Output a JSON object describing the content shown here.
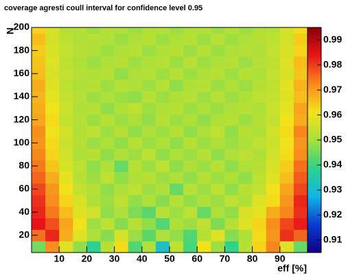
{
  "chart_data": {
    "type": "heatmap",
    "title": "coverage agresti coull interval for confidence level 0.95",
    "xlabel": "eff [%]",
    "ylabel": "N",
    "xlim": [
      0,
      100
    ],
    "xticks": [
      10,
      20,
      30,
      40,
      50,
      60,
      70,
      80,
      90
    ],
    "ylim": [
      5,
      200
    ],
    "yticks": [
      20,
      40,
      60,
      80,
      100,
      120,
      140,
      160,
      180,
      200
    ],
    "zlim": [
      0.905,
      0.995
    ],
    "zticks": [
      0.91,
      0.92,
      0.93,
      0.94,
      0.95,
      0.96,
      0.97,
      0.98,
      0.99
    ],
    "colors": [
      "#10008a",
      "#0a3cd0",
      "#12b4e8",
      "#2ed28a",
      "#a8e03c",
      "#f4e21a",
      "#f88a1e",
      "#e8141a",
      "#8a0008"
    ],
    "xbins": [
      0,
      5,
      10,
      15,
      20,
      25,
      30,
      35,
      40,
      45,
      50,
      55,
      60,
      65,
      70,
      75,
      80,
      85,
      90,
      95,
      100
    ],
    "ybins": [
      5,
      15,
      25,
      35,
      45,
      55,
      65,
      75,
      85,
      95,
      105,
      115,
      125,
      135,
      145,
      155,
      165,
      175,
      185,
      195,
      200
    ],
    "values": [
      [
        0.945,
        0.972,
        0.958,
        0.948,
        0.938,
        0.952,
        0.962,
        0.942,
        0.951,
        0.932,
        0.953,
        0.941,
        0.961,
        0.949,
        0.939,
        0.952,
        0.963,
        0.973,
        0.958,
        0.944
      ],
      [
        0.975,
        0.982,
        0.968,
        0.958,
        0.951,
        0.947,
        0.957,
        0.949,
        0.943,
        0.951,
        0.948,
        0.942,
        0.952,
        0.958,
        0.947,
        0.951,
        0.962,
        0.971,
        0.981,
        0.976
      ],
      [
        0.984,
        0.978,
        0.969,
        0.961,
        0.949,
        0.953,
        0.947,
        0.952,
        0.948,
        0.942,
        0.951,
        0.949,
        0.953,
        0.946,
        0.952,
        0.958,
        0.963,
        0.972,
        0.979,
        0.983
      ],
      [
        0.982,
        0.974,
        0.966,
        0.958,
        0.956,
        0.948,
        0.951,
        0.946,
        0.943,
        0.952,
        0.949,
        0.953,
        0.944,
        0.951,
        0.948,
        0.957,
        0.959,
        0.968,
        0.973,
        0.981
      ],
      [
        0.981,
        0.972,
        0.963,
        0.957,
        0.951,
        0.949,
        0.953,
        0.948,
        0.951,
        0.947,
        0.952,
        0.948,
        0.951,
        0.949,
        0.953,
        0.951,
        0.958,
        0.962,
        0.971,
        0.982
      ],
      [
        0.979,
        0.971,
        0.961,
        0.954,
        0.952,
        0.948,
        0.951,
        0.953,
        0.949,
        0.951,
        0.944,
        0.952,
        0.949,
        0.953,
        0.948,
        0.952,
        0.954,
        0.961,
        0.969,
        0.979
      ],
      [
        0.976,
        0.968,
        0.959,
        0.952,
        0.949,
        0.953,
        0.948,
        0.951,
        0.952,
        0.949,
        0.951,
        0.948,
        0.952,
        0.949,
        0.951,
        0.948,
        0.953,
        0.958,
        0.966,
        0.977
      ],
      [
        0.974,
        0.965,
        0.957,
        0.953,
        0.948,
        0.951,
        0.944,
        0.952,
        0.949,
        0.953,
        0.948,
        0.951,
        0.949,
        0.952,
        0.948,
        0.951,
        0.952,
        0.957,
        0.964,
        0.975
      ],
      [
        0.973,
        0.963,
        0.956,
        0.951,
        0.952,
        0.948,
        0.951,
        0.949,
        0.953,
        0.948,
        0.951,
        0.949,
        0.952,
        0.948,
        0.951,
        0.953,
        0.951,
        0.956,
        0.962,
        0.972
      ],
      [
        0.971,
        0.962,
        0.955,
        0.952,
        0.949,
        0.951,
        0.948,
        0.952,
        0.949,
        0.951,
        0.948,
        0.952,
        0.949,
        0.951,
        0.949,
        0.951,
        0.953,
        0.955,
        0.961,
        0.971
      ],
      [
        0.972,
        0.961,
        0.956,
        0.951,
        0.953,
        0.949,
        0.952,
        0.948,
        0.951,
        0.949,
        0.952,
        0.948,
        0.951,
        0.953,
        0.948,
        0.952,
        0.951,
        0.956,
        0.962,
        0.973
      ],
      [
        0.969,
        0.962,
        0.954,
        0.952,
        0.949,
        0.952,
        0.949,
        0.951,
        0.948,
        0.952,
        0.949,
        0.951,
        0.948,
        0.951,
        0.952,
        0.949,
        0.952,
        0.954,
        0.961,
        0.968
      ],
      [
        0.968,
        0.961,
        0.955,
        0.951,
        0.952,
        0.948,
        0.951,
        0.953,
        0.949,
        0.951,
        0.952,
        0.949,
        0.951,
        0.949,
        0.951,
        0.952,
        0.951,
        0.955,
        0.959,
        0.969
      ],
      [
        0.967,
        0.959,
        0.954,
        0.952,
        0.949,
        0.951,
        0.949,
        0.948,
        0.952,
        0.949,
        0.951,
        0.952,
        0.949,
        0.952,
        0.949,
        0.951,
        0.953,
        0.954,
        0.958,
        0.966
      ],
      [
        0.968,
        0.958,
        0.953,
        0.951,
        0.952,
        0.949,
        0.952,
        0.951,
        0.949,
        0.952,
        0.948,
        0.951,
        0.952,
        0.949,
        0.951,
        0.949,
        0.952,
        0.953,
        0.959,
        0.967
      ],
      [
        0.966,
        0.957,
        0.954,
        0.952,
        0.951,
        0.952,
        0.948,
        0.951,
        0.952,
        0.949,
        0.952,
        0.949,
        0.951,
        0.952,
        0.949,
        0.952,
        0.951,
        0.954,
        0.957,
        0.965
      ],
      [
        0.965,
        0.958,
        0.953,
        0.951,
        0.949,
        0.951,
        0.952,
        0.949,
        0.951,
        0.952,
        0.949,
        0.952,
        0.949,
        0.951,
        0.952,
        0.949,
        0.952,
        0.953,
        0.958,
        0.966
      ],
      [
        0.964,
        0.957,
        0.954,
        0.952,
        0.951,
        0.949,
        0.951,
        0.952,
        0.949,
        0.951,
        0.952,
        0.949,
        0.952,
        0.949,
        0.951,
        0.952,
        0.951,
        0.954,
        0.957,
        0.963
      ],
      [
        0.966,
        0.956,
        0.953,
        0.951,
        0.952,
        0.951,
        0.949,
        0.951,
        0.952,
        0.949,
        0.951,
        0.952,
        0.949,
        0.952,
        0.949,
        0.951,
        0.952,
        0.953,
        0.956,
        0.964
      ],
      [
        0.963,
        0.957,
        0.952,
        0.952,
        0.949,
        0.952,
        0.951,
        0.949,
        0.951,
        0.952,
        0.949,
        0.951,
        0.952,
        0.949,
        0.952,
        0.949,
        0.951,
        0.952,
        0.957,
        0.962
      ]
    ]
  }
}
